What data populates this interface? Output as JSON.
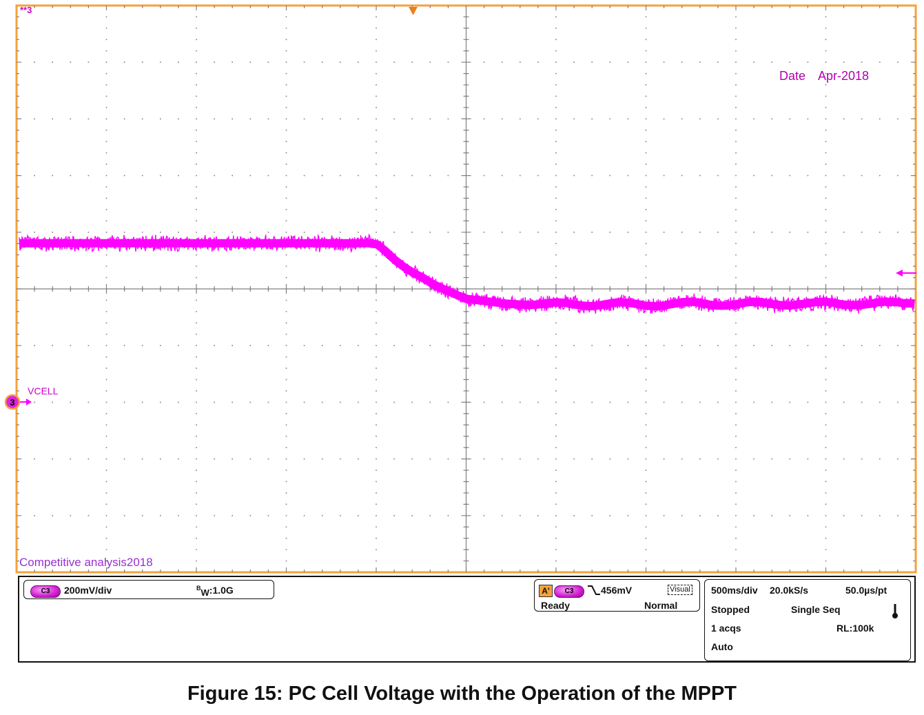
{
  "chart_data": {
    "type": "line",
    "title": "Figure 15: PC Cell Voltage with the Operation of the MPPT",
    "channel_label": "VCELL",
    "channel_number": "3",
    "top_marker": "**3",
    "annotation_date_label": "Date",
    "annotation_date_value": "Apr-2018",
    "watermark": "Competitive analysis2018",
    "x_divisions": 10,
    "y_divisions": 10,
    "x_unit_per_div": "500ms/div",
    "y_unit_per_div": "200mV/div",
    "series": [
      {
        "values_div_above_ground": [
          2.8,
          2.8,
          2.8,
          2.8,
          2.8,
          2.8,
          2.8,
          2.8,
          2.8,
          2.8,
          2.8,
          2.8,
          2.8,
          2.8,
          2.8,
          2.8,
          2.8,
          2.8,
          2.8,
          2.8,
          2.8,
          2.8,
          2.8,
          2.8,
          2.8,
          2.8,
          2.8,
          2.8,
          2.8,
          2.8,
          2.8,
          2.8,
          2.8,
          2.8,
          2.8,
          2.8,
          2.8,
          2.8,
          2.8,
          2.8,
          2.78,
          2.65,
          2.5,
          2.38,
          2.28,
          2.2,
          2.1,
          2.02,
          1.95,
          1.88,
          1.82,
          1.8,
          1.78,
          1.76,
          1.74,
          1.73,
          1.72,
          1.71,
          1.72,
          1.74,
          1.76,
          1.75,
          1.72,
          1.7,
          1.69,
          1.71,
          1.74,
          1.76,
          1.75,
          1.73,
          1.7,
          1.69,
          1.7,
          1.73,
          1.76,
          1.77,
          1.75,
          1.72,
          1.7,
          1.7,
          1.72,
          1.75,
          1.77,
          1.76,
          1.73,
          1.71,
          1.7,
          1.72,
          1.74,
          1.76,
          1.77,
          1.75,
          1.72,
          1.71,
          1.71,
          1.73,
          1.76,
          1.77,
          1.76,
          1.74,
          1.74
        ],
        "color": "#ff00ff"
      }
    ],
    "trace_color": "#ff00ff",
    "grid_color": "#808080",
    "frame_color": "#f4a23c",
    "trigger_marker_color": "#f07d1a"
  },
  "status": {
    "channel_pill": "C3",
    "volts_per_div": "200mV/div",
    "bandwidth_prefix": "B",
    "bandwidth_sub": "W",
    "bandwidth_value": ":1.0G",
    "trigger_source_prefix": "A'",
    "trigger_pill": "C3",
    "trigger_level": "456mV",
    "trigger_visual": "Visual",
    "trigger_state": "Ready",
    "trigger_mode": "Normal",
    "time_per_div": "500ms/div",
    "sample_rate": "20.0kS/s",
    "time_per_pt": "50.0µs/pt",
    "acq_state": "Stopped",
    "acq_mode": "Single Seq",
    "acq_count": "1 acqs",
    "record_length": "RL:100k",
    "auto": "Auto"
  }
}
